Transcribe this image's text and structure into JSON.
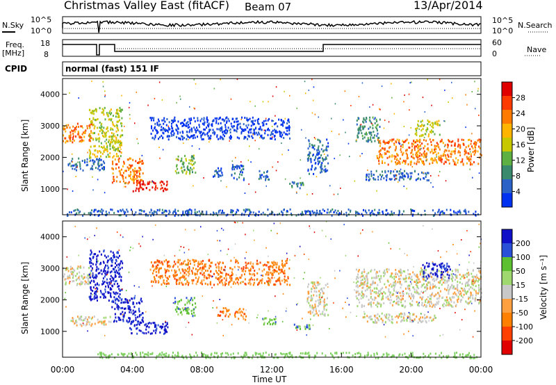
{
  "header": {
    "station": "Christmas Valley East (fitACF)",
    "beam": "Beam 07",
    "date": "13/Apr/2014"
  },
  "top_panels": {
    "noise_left_label": "N.Sky",
    "noise_left_ticks": [
      "10^5",
      "10^0"
    ],
    "noise_right_ticks": [
      "10^5",
      "10^0"
    ],
    "noise_right_label": "N.Search",
    "freq_label_1": "Freq.",
    "freq_label_2": "[MHz]",
    "freq_ticks": [
      "18",
      "8"
    ],
    "nave_ticks": [
      "60",
      "0"
    ],
    "nave_label": "Nave",
    "cpid_label": "CPID",
    "cpid_value": "normal (fast) 151 IF"
  },
  "colors": {
    "power": [
      "#0030f0",
      "#2a62c8",
      "#3a8a6e",
      "#5fb043",
      "#c8c800",
      "#ffb400",
      "#ff7a00",
      "#ff3a00",
      "#e00000"
    ],
    "velocity": [
      "#1010c8",
      "#2a50d8",
      "#5cc030",
      "#a0d870",
      "#c8c8c8",
      "#ffa040",
      "#ff8000",
      "#ff4000",
      "#e00000"
    ],
    "ground": "#7ed060"
  },
  "chart_data": [
    {
      "type": "heatmap",
      "title": "",
      "xlabel": "",
      "ylabel": "Slant Range [km]",
      "colorbar_label": "Power [dB]",
      "colorbar_ticks": [
        "28",
        "24",
        "20",
        "16",
        "12",
        "8",
        "4"
      ],
      "ylim": [
        180,
        4500
      ],
      "y_ticks": [
        "4000",
        "3000",
        "2000",
        "1000"
      ],
      "regions": [
        {
          "x": [
            0.0,
            1.7
          ],
          "y": [
            2500,
            3100
          ],
          "level": 6
        },
        {
          "x": [
            1.5,
            3.4
          ],
          "y": [
            2000,
            3600
          ],
          "level": 4
        },
        {
          "x": [
            2.8,
            4.6
          ],
          "y": [
            1200,
            2000
          ],
          "level": 6
        },
        {
          "x": [
            4.0,
            6.0
          ],
          "y": [
            950,
            1300
          ],
          "level": 8
        },
        {
          "x": [
            0.3,
            2.4
          ],
          "y": [
            1600,
            2000
          ],
          "level": 1
        },
        {
          "x": [
            6.4,
            7.6
          ],
          "y": [
            1500,
            2100
          ],
          "level": 3
        },
        {
          "x": [
            8.6,
            9.2
          ],
          "y": [
            1400,
            1700
          ],
          "level": 1
        },
        {
          "x": [
            9.6,
            10.4
          ],
          "y": [
            1300,
            1800
          ],
          "level": 1
        },
        {
          "x": [
            11.2,
            11.9
          ],
          "y": [
            1300,
            1600
          ],
          "level": 1
        },
        {
          "x": [
            13.0,
            13.8
          ],
          "y": [
            1050,
            1250
          ],
          "level": 2
        },
        {
          "x": [
            14.0,
            15.2
          ],
          "y": [
            1500,
            2600
          ],
          "level": 1
        },
        {
          "x": [
            16.8,
            18.2
          ],
          "y": [
            2500,
            3300
          ],
          "level": 2
        },
        {
          "x": [
            18.0,
            24.0
          ],
          "y": [
            1800,
            2600
          ],
          "level": 6
        },
        {
          "x": [
            20.2,
            21.6
          ],
          "y": [
            2700,
            3200
          ],
          "level": 4
        },
        {
          "x": [
            17.2,
            21.0
          ],
          "y": [
            1300,
            1600
          ],
          "level": 1
        },
        {
          "x": [
            5.0,
            13.0
          ],
          "y": [
            2600,
            3300
          ],
          "level": 0
        },
        {
          "x": [
            0.2,
            23.8
          ],
          "y": [
            180,
            380
          ],
          "level": 1
        }
      ]
    },
    {
      "type": "heatmap",
      "title": "",
      "xlabel": "Time UT",
      "ylabel": "Slant Range [km]",
      "colorbar_label": "Velocity [m s⁻¹]",
      "colorbar_ticks": [
        "200",
        "100",
        "50",
        "15",
        "-15",
        "-50",
        "-100",
        "-200"
      ],
      "ylim": [
        180,
        4500
      ],
      "y_ticks": [
        "4000",
        "3000",
        "2000",
        "1000"
      ],
      "x_ticks": [
        "00:00",
        "04:00",
        "08:00",
        "12:00",
        "16:00",
        "20:00",
        "00:00"
      ],
      "xlim_hours": [
        0,
        24
      ],
      "regions": [
        {
          "x": [
            0.0,
            1.7
          ],
          "y": [
            2500,
            3100
          ],
          "level": 4
        },
        {
          "x": [
            1.5,
            3.4
          ],
          "y": [
            2000,
            3600
          ],
          "level": 0
        },
        {
          "x": [
            2.8,
            4.6
          ],
          "y": [
            1300,
            2100
          ],
          "level": 0
        },
        {
          "x": [
            3.8,
            6.0
          ],
          "y": [
            950,
            1350
          ],
          "level": 0
        },
        {
          "x": [
            0.4,
            2.8
          ],
          "y": [
            1200,
            1500
          ],
          "level": 4
        },
        {
          "x": [
            6.4,
            7.6
          ],
          "y": [
            1500,
            2100
          ],
          "level": 2
        },
        {
          "x": [
            8.8,
            9.6
          ],
          "y": [
            1500,
            1800
          ],
          "level": 6
        },
        {
          "x": [
            9.8,
            10.5
          ],
          "y": [
            1400,
            1750
          ],
          "level": 6
        },
        {
          "x": [
            11.4,
            12.2
          ],
          "y": [
            1250,
            1450
          ],
          "level": 2
        },
        {
          "x": [
            13.2,
            14.2
          ],
          "y": [
            1100,
            1250
          ],
          "level": 2
        },
        {
          "x": [
            14.0,
            15.2
          ],
          "y": [
            1500,
            2600
          ],
          "level": 4
        },
        {
          "x": [
            16.8,
            24.0
          ],
          "y": [
            1800,
            3000
          ],
          "level": 4
        },
        {
          "x": [
            20.6,
            22.2
          ],
          "y": [
            2700,
            3200
          ],
          "level": 0
        },
        {
          "x": [
            17.0,
            21.5
          ],
          "y": [
            1300,
            1600
          ],
          "level": 4
        },
        {
          "x": [
            5.0,
            13.0
          ],
          "y": [
            2500,
            3300
          ],
          "level": 6
        },
        {
          "x": [
            2.0,
            23.8
          ],
          "y": [
            180,
            360
          ],
          "level": 3
        }
      ]
    }
  ]
}
